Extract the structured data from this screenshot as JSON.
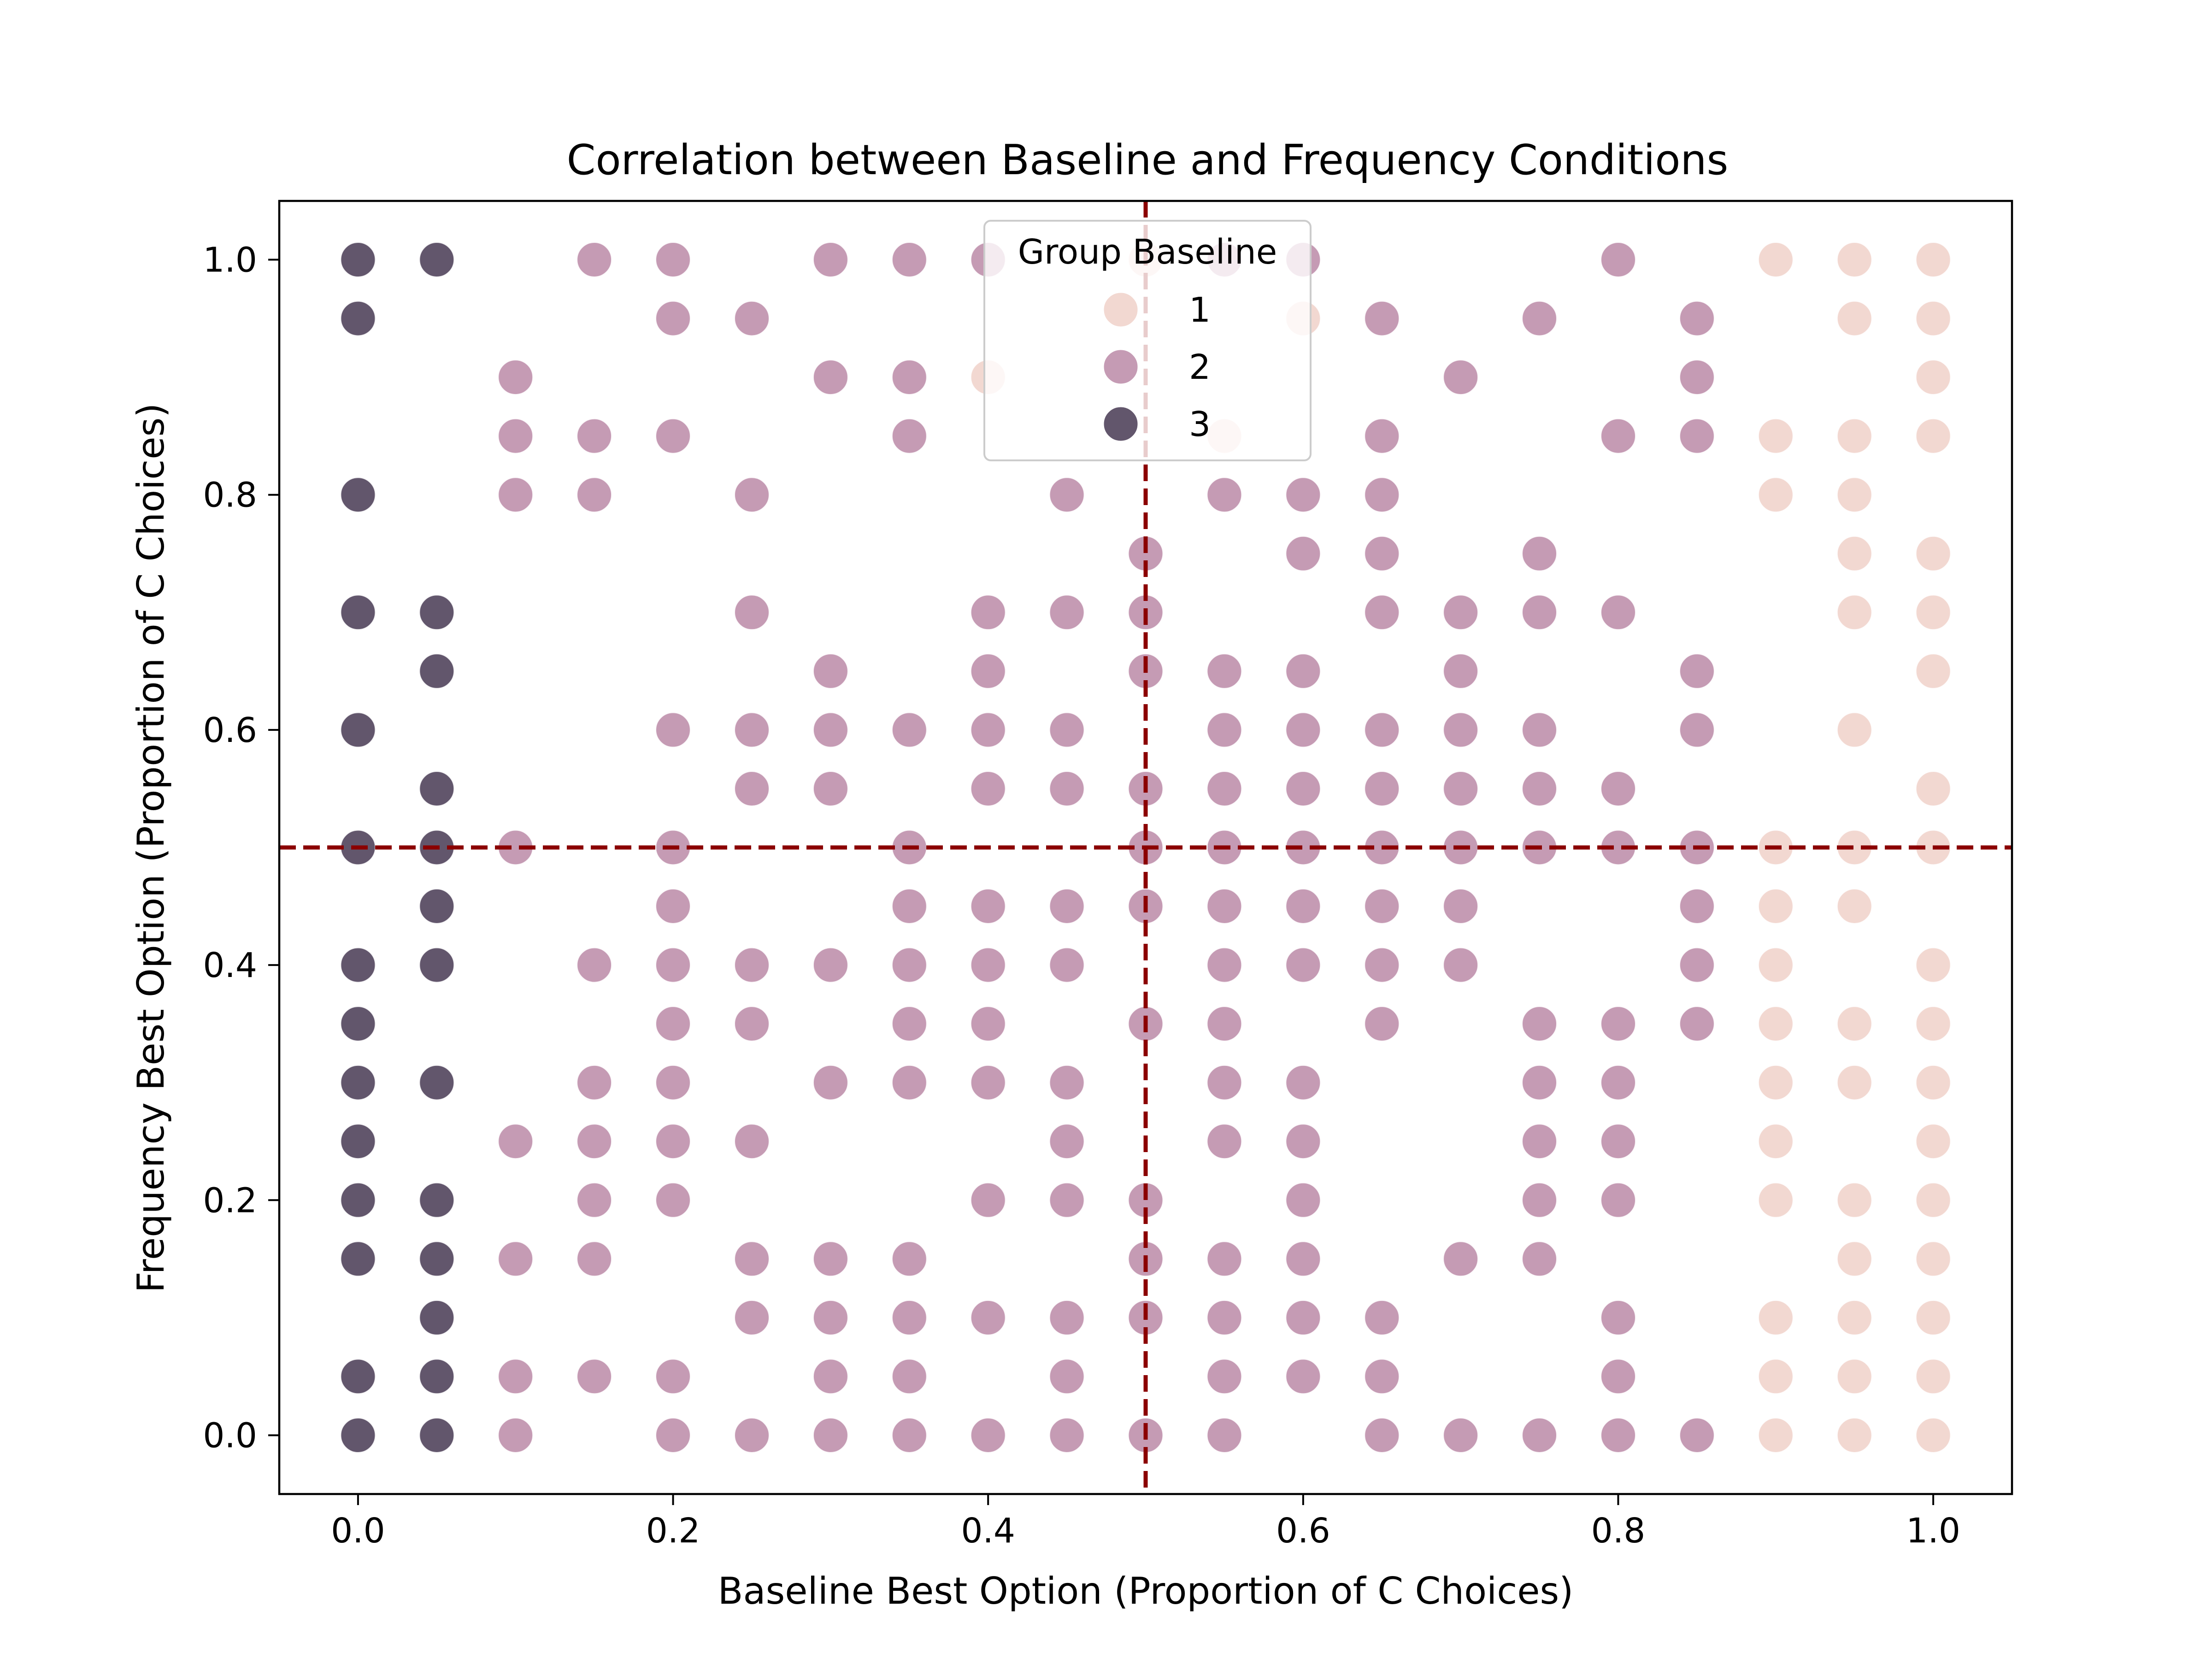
{
  "chart_data": {
    "type": "scatter",
    "title": "Correlation between Baseline and Frequency Conditions",
    "xlabel": "Baseline Best Option (Proportion of C Choices)",
    "ylabel": "Frequency Best Option (Proportion of C Choices)",
    "xlim": [
      -0.05,
      1.05
    ],
    "ylim": [
      -0.05,
      1.05
    ],
    "xticks": [
      "0.0",
      "0.2",
      "0.4",
      "0.6",
      "0.8",
      "1.0"
    ],
    "yticks": [
      "0.0",
      "0.2",
      "0.4",
      "0.6",
      "0.8",
      "1.0"
    ],
    "xtick_values": [
      0.0,
      0.2,
      0.4,
      0.6,
      0.8,
      1.0
    ],
    "ytick_values": [
      0.0,
      0.2,
      0.4,
      0.6,
      0.8,
      1.0
    ],
    "grid": false,
    "reference_lines": {
      "x": 0.5,
      "y": 0.5,
      "color": "#8b0000",
      "style": "dashed"
    },
    "legend": {
      "title": "Group Baseline",
      "placement": "upper-center",
      "entries": [
        {
          "label": "1",
          "color": "#eecbc2"
        },
        {
          "label": "2",
          "color": "#b27a9b"
        },
        {
          "label": "3",
          "color": "#2e1e3b"
        }
      ]
    },
    "point_alpha": 0.75,
    "series": [
      {
        "group": "1",
        "color": "#eecbc2",
        "points": [
          [
            0.4,
            0.9
          ],
          [
            0.5,
            1.0
          ],
          [
            0.55,
            0.85
          ],
          [
            0.6,
            0.95
          ],
          [
            0.9,
            1.0
          ],
          [
            0.95,
            1.0
          ],
          [
            1.0,
            1.0
          ],
          [
            0.95,
            0.95
          ],
          [
            1.0,
            0.95
          ],
          [
            1.0,
            0.9
          ],
          [
            0.9,
            0.85
          ],
          [
            0.95,
            0.85
          ],
          [
            1.0,
            0.85
          ],
          [
            0.9,
            0.8
          ],
          [
            0.95,
            0.8
          ],
          [
            0.95,
            0.75
          ],
          [
            1.0,
            0.75
          ],
          [
            0.95,
            0.7
          ],
          [
            1.0,
            0.7
          ],
          [
            1.0,
            0.65
          ],
          [
            0.95,
            0.6
          ],
          [
            1.0,
            0.55
          ],
          [
            0.9,
            0.5
          ],
          [
            0.95,
            0.5
          ],
          [
            1.0,
            0.5
          ],
          [
            0.9,
            0.45
          ],
          [
            0.95,
            0.45
          ],
          [
            0.9,
            0.4
          ],
          [
            1.0,
            0.4
          ],
          [
            0.9,
            0.35
          ],
          [
            0.95,
            0.35
          ],
          [
            1.0,
            0.35
          ],
          [
            0.9,
            0.3
          ],
          [
            0.95,
            0.3
          ],
          [
            1.0,
            0.3
          ],
          [
            0.9,
            0.25
          ],
          [
            1.0,
            0.25
          ],
          [
            0.9,
            0.2
          ],
          [
            0.95,
            0.2
          ],
          [
            1.0,
            0.2
          ],
          [
            0.95,
            0.15
          ],
          [
            1.0,
            0.15
          ],
          [
            0.9,
            0.1
          ],
          [
            0.95,
            0.1
          ],
          [
            1.0,
            0.1
          ],
          [
            0.9,
            0.05
          ],
          [
            0.95,
            0.05
          ],
          [
            1.0,
            0.05
          ],
          [
            0.9,
            0.0
          ],
          [
            0.95,
            0.0
          ],
          [
            1.0,
            0.0
          ]
        ]
      },
      {
        "group": "2",
        "color": "#b27a9b",
        "points": [
          [
            0.15,
            1.0
          ],
          [
            0.2,
            1.0
          ],
          [
            0.3,
            1.0
          ],
          [
            0.35,
            1.0
          ],
          [
            0.4,
            1.0
          ],
          [
            0.55,
            1.0
          ],
          [
            0.6,
            1.0
          ],
          [
            0.8,
            1.0
          ],
          [
            0.2,
            0.95
          ],
          [
            0.25,
            0.95
          ],
          [
            0.65,
            0.95
          ],
          [
            0.75,
            0.95
          ],
          [
            0.85,
            0.95
          ],
          [
            0.1,
            0.9
          ],
          [
            0.3,
            0.9
          ],
          [
            0.35,
            0.9
          ],
          [
            0.7,
            0.9
          ],
          [
            0.85,
            0.9
          ],
          [
            0.1,
            0.85
          ],
          [
            0.15,
            0.85
          ],
          [
            0.2,
            0.85
          ],
          [
            0.35,
            0.85
          ],
          [
            0.65,
            0.85
          ],
          [
            0.8,
            0.85
          ],
          [
            0.85,
            0.85
          ],
          [
            0.1,
            0.8
          ],
          [
            0.15,
            0.8
          ],
          [
            0.25,
            0.8
          ],
          [
            0.45,
            0.8
          ],
          [
            0.55,
            0.8
          ],
          [
            0.6,
            0.8
          ],
          [
            0.65,
            0.8
          ],
          [
            0.5,
            0.75
          ],
          [
            0.6,
            0.75
          ],
          [
            0.65,
            0.75
          ],
          [
            0.75,
            0.75
          ],
          [
            0.25,
            0.7
          ],
          [
            0.4,
            0.7
          ],
          [
            0.45,
            0.7
          ],
          [
            0.5,
            0.7
          ],
          [
            0.65,
            0.7
          ],
          [
            0.7,
            0.7
          ],
          [
            0.75,
            0.7
          ],
          [
            0.8,
            0.7
          ],
          [
            0.3,
            0.65
          ],
          [
            0.4,
            0.65
          ],
          [
            0.5,
            0.65
          ],
          [
            0.55,
            0.65
          ],
          [
            0.6,
            0.65
          ],
          [
            0.7,
            0.65
          ],
          [
            0.85,
            0.65
          ],
          [
            0.2,
            0.6
          ],
          [
            0.25,
            0.6
          ],
          [
            0.3,
            0.6
          ],
          [
            0.35,
            0.6
          ],
          [
            0.4,
            0.6
          ],
          [
            0.45,
            0.6
          ],
          [
            0.55,
            0.6
          ],
          [
            0.6,
            0.6
          ],
          [
            0.65,
            0.6
          ],
          [
            0.7,
            0.6
          ],
          [
            0.75,
            0.6
          ],
          [
            0.85,
            0.6
          ],
          [
            0.25,
            0.55
          ],
          [
            0.3,
            0.55
          ],
          [
            0.4,
            0.55
          ],
          [
            0.45,
            0.55
          ],
          [
            0.5,
            0.55
          ],
          [
            0.55,
            0.55
          ],
          [
            0.6,
            0.55
          ],
          [
            0.65,
            0.55
          ],
          [
            0.7,
            0.55
          ],
          [
            0.75,
            0.55
          ],
          [
            0.8,
            0.55
          ],
          [
            0.1,
            0.5
          ],
          [
            0.2,
            0.5
          ],
          [
            0.35,
            0.5
          ],
          [
            0.5,
            0.5
          ],
          [
            0.55,
            0.5
          ],
          [
            0.6,
            0.5
          ],
          [
            0.65,
            0.5
          ],
          [
            0.7,
            0.5
          ],
          [
            0.75,
            0.5
          ],
          [
            0.8,
            0.5
          ],
          [
            0.85,
            0.5
          ],
          [
            0.2,
            0.45
          ],
          [
            0.35,
            0.45
          ],
          [
            0.4,
            0.45
          ],
          [
            0.45,
            0.45
          ],
          [
            0.5,
            0.45
          ],
          [
            0.55,
            0.45
          ],
          [
            0.6,
            0.45
          ],
          [
            0.65,
            0.45
          ],
          [
            0.7,
            0.45
          ],
          [
            0.85,
            0.45
          ],
          [
            0.15,
            0.4
          ],
          [
            0.2,
            0.4
          ],
          [
            0.25,
            0.4
          ],
          [
            0.3,
            0.4
          ],
          [
            0.35,
            0.4
          ],
          [
            0.4,
            0.4
          ],
          [
            0.45,
            0.4
          ],
          [
            0.55,
            0.4
          ],
          [
            0.6,
            0.4
          ],
          [
            0.65,
            0.4
          ],
          [
            0.7,
            0.4
          ],
          [
            0.85,
            0.4
          ],
          [
            0.2,
            0.35
          ],
          [
            0.25,
            0.35
          ],
          [
            0.35,
            0.35
          ],
          [
            0.4,
            0.35
          ],
          [
            0.5,
            0.35
          ],
          [
            0.55,
            0.35
          ],
          [
            0.65,
            0.35
          ],
          [
            0.75,
            0.35
          ],
          [
            0.8,
            0.35
          ],
          [
            0.85,
            0.35
          ],
          [
            0.15,
            0.3
          ],
          [
            0.2,
            0.3
          ],
          [
            0.3,
            0.3
          ],
          [
            0.35,
            0.3
          ],
          [
            0.4,
            0.3
          ],
          [
            0.45,
            0.3
          ],
          [
            0.55,
            0.3
          ],
          [
            0.6,
            0.3
          ],
          [
            0.75,
            0.3
          ],
          [
            0.8,
            0.3
          ],
          [
            0.1,
            0.25
          ],
          [
            0.15,
            0.25
          ],
          [
            0.2,
            0.25
          ],
          [
            0.25,
            0.25
          ],
          [
            0.45,
            0.25
          ],
          [
            0.55,
            0.25
          ],
          [
            0.6,
            0.25
          ],
          [
            0.75,
            0.25
          ],
          [
            0.8,
            0.25
          ],
          [
            0.15,
            0.2
          ],
          [
            0.2,
            0.2
          ],
          [
            0.4,
            0.2
          ],
          [
            0.45,
            0.2
          ],
          [
            0.5,
            0.2
          ],
          [
            0.6,
            0.2
          ],
          [
            0.75,
            0.2
          ],
          [
            0.8,
            0.2
          ],
          [
            0.1,
            0.15
          ],
          [
            0.15,
            0.15
          ],
          [
            0.25,
            0.15
          ],
          [
            0.3,
            0.15
          ],
          [
            0.35,
            0.15
          ],
          [
            0.5,
            0.15
          ],
          [
            0.55,
            0.15
          ],
          [
            0.6,
            0.15
          ],
          [
            0.7,
            0.15
          ],
          [
            0.75,
            0.15
          ],
          [
            0.25,
            0.1
          ],
          [
            0.3,
            0.1
          ],
          [
            0.35,
            0.1
          ],
          [
            0.4,
            0.1
          ],
          [
            0.45,
            0.1
          ],
          [
            0.5,
            0.1
          ],
          [
            0.55,
            0.1
          ],
          [
            0.6,
            0.1
          ],
          [
            0.65,
            0.1
          ],
          [
            0.8,
            0.1
          ],
          [
            0.1,
            0.05
          ],
          [
            0.15,
            0.05
          ],
          [
            0.2,
            0.05
          ],
          [
            0.3,
            0.05
          ],
          [
            0.35,
            0.05
          ],
          [
            0.45,
            0.05
          ],
          [
            0.55,
            0.05
          ],
          [
            0.6,
            0.05
          ],
          [
            0.65,
            0.05
          ],
          [
            0.8,
            0.05
          ],
          [
            0.1,
            0.0
          ],
          [
            0.2,
            0.0
          ],
          [
            0.25,
            0.0
          ],
          [
            0.3,
            0.0
          ],
          [
            0.35,
            0.0
          ],
          [
            0.4,
            0.0
          ],
          [
            0.45,
            0.0
          ],
          [
            0.5,
            0.0
          ],
          [
            0.55,
            0.0
          ],
          [
            0.65,
            0.0
          ],
          [
            0.7,
            0.0
          ],
          [
            0.75,
            0.0
          ],
          [
            0.8,
            0.0
          ],
          [
            0.85,
            0.0
          ]
        ]
      },
      {
        "group": "3",
        "color": "#2e1e3b",
        "points": [
          [
            0.0,
            1.0
          ],
          [
            0.05,
            1.0
          ],
          [
            0.0,
            0.95
          ],
          [
            0.0,
            0.8
          ],
          [
            0.0,
            0.7
          ],
          [
            0.05,
            0.7
          ],
          [
            0.05,
            0.65
          ],
          [
            0.0,
            0.6
          ],
          [
            0.05,
            0.55
          ],
          [
            0.0,
            0.5
          ],
          [
            0.05,
            0.5
          ],
          [
            0.05,
            0.45
          ],
          [
            0.0,
            0.4
          ],
          [
            0.05,
            0.4
          ],
          [
            0.0,
            0.35
          ],
          [
            0.0,
            0.3
          ],
          [
            0.05,
            0.3
          ],
          [
            0.0,
            0.25
          ],
          [
            0.0,
            0.2
          ],
          [
            0.05,
            0.2
          ],
          [
            0.0,
            0.15
          ],
          [
            0.05,
            0.15
          ],
          [
            0.05,
            0.1
          ],
          [
            0.0,
            0.05
          ],
          [
            0.05,
            0.05
          ],
          [
            0.0,
            0.0
          ],
          [
            0.05,
            0.0
          ]
        ]
      }
    ]
  }
}
